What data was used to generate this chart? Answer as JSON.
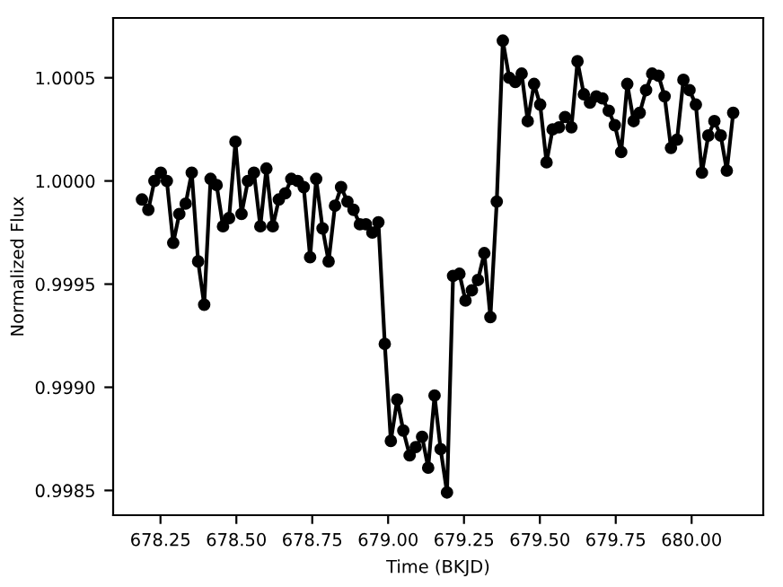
{
  "chart_data": {
    "type": "line",
    "xlabel": "Time (BKJD)",
    "ylabel": "Normalized Flux",
    "x": [
      678.189,
      678.21,
      678.23,
      678.251,
      678.271,
      678.292,
      678.312,
      678.333,
      678.353,
      678.374,
      678.394,
      678.415,
      678.435,
      678.456,
      678.476,
      678.497,
      678.517,
      678.538,
      678.558,
      678.579,
      678.599,
      678.62,
      678.64,
      678.661,
      678.681,
      678.702,
      678.722,
      678.743,
      678.763,
      678.784,
      678.804,
      678.825,
      678.845,
      678.866,
      678.886,
      678.907,
      678.927,
      678.948,
      678.968,
      678.989,
      679.009,
      679.03,
      679.05,
      679.071,
      679.091,
      679.112,
      679.132,
      679.153,
      679.173,
      679.194,
      679.214,
      679.235,
      679.255,
      679.276,
      679.296,
      679.317,
      679.337,
      679.358,
      679.378,
      679.399,
      679.419,
      679.44,
      679.46,
      679.481,
      679.501,
      679.522,
      679.542,
      679.563,
      679.583,
      679.604,
      679.624,
      679.645,
      679.665,
      679.686,
      679.706,
      679.727,
      679.747,
      679.768,
      679.788,
      679.809,
      679.829,
      679.85,
      679.87,
      679.891,
      679.911,
      679.932,
      679.952,
      679.973,
      679.993,
      680.014,
      680.034,
      680.055,
      680.075,
      680.096,
      680.116,
      680.137
    ],
    "series": [
      {
        "color": "#000000",
        "values": [
          0.99991,
          0.99986,
          1.0,
          1.00004,
          1.0,
          0.9997,
          0.99984,
          0.99989,
          1.00004,
          0.99961,
          0.9994,
          1.00001,
          0.99998,
          0.99978,
          0.99982,
          1.00019,
          0.99984,
          1.0,
          1.00004,
          0.99978,
          1.00006,
          0.99978,
          0.99991,
          0.99994,
          1.00001,
          1.0,
          0.99997,
          0.99963,
          1.00001,
          0.99977,
          0.99961,
          0.99988,
          0.99997,
          0.9999,
          0.99986,
          0.99979,
          0.99979,
          0.99975,
          0.9998,
          0.99921,
          0.99874,
          0.99894,
          0.99879,
          0.99867,
          0.99871,
          0.99876,
          0.99861,
          0.99896,
          0.9987,
          0.99849,
          0.99954,
          0.99955,
          0.99942,
          0.99947,
          0.99952,
          0.99965,
          0.99934,
          0.9999,
          1.00068,
          1.0005,
          1.00048,
          1.00052,
          1.00029,
          1.00047,
          1.00037,
          1.00009,
          1.00025,
          1.00026,
          1.00031,
          1.00026,
          1.00058,
          1.00042,
          1.00038,
          1.00041,
          1.0004,
          1.00034,
          1.00027,
          1.00014,
          1.00047,
          1.00029,
          1.00033,
          1.00044,
          1.00052,
          1.00051,
          1.00041,
          1.00016,
          1.0002,
          1.00049,
          1.00044,
          1.00037,
          1.00004,
          1.00022,
          1.00029,
          1.00022,
          1.00005,
          1.00033
        ]
      }
    ],
    "marker": "circle",
    "line_style": "solid",
    "xlim": [
      678.094,
      680.236
    ],
    "ylim": [
      0.99838,
      1.00079
    ],
    "xticks": [
      {
        "value": 678.25,
        "label": "678.25"
      },
      {
        "value": 678.5,
        "label": "678.50"
      },
      {
        "value": 678.75,
        "label": "678.75"
      },
      {
        "value": 679.0,
        "label": "679.00"
      },
      {
        "value": 679.25,
        "label": "679.25"
      },
      {
        "value": 679.5,
        "label": "679.50"
      },
      {
        "value": 679.75,
        "label": "679.75"
      },
      {
        "value": 680.0,
        "label": "680.00"
      }
    ],
    "yticks": [
      {
        "value": 0.9985,
        "label": "0.9985"
      },
      {
        "value": 0.999,
        "label": "0.9990"
      },
      {
        "value": 0.9995,
        "label": "0.9995"
      },
      {
        "value": 1.0,
        "label": "1.0000"
      },
      {
        "value": 1.0005,
        "label": "1.0005"
      }
    ],
    "grid": false
  }
}
